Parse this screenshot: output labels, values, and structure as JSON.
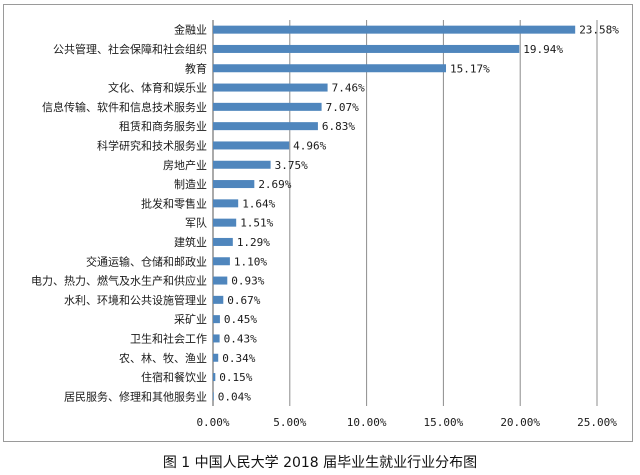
{
  "caption": "图 1 中国人民大学 2018 届毕业生就业行业分布图",
  "chart_data": {
    "type": "bar",
    "orientation": "horizontal",
    "bar_color": "#4f86bd",
    "grid": "vertical",
    "xlim": [
      0,
      0.25
    ],
    "x_ticks": [
      "0.00%",
      "5.00%",
      "10.00%",
      "15.00%",
      "20.00%",
      "25.00%"
    ],
    "x_tick_values": [
      0,
      0.05,
      0.1,
      0.15,
      0.2,
      0.25
    ],
    "categories": [
      "金融业",
      "公共管理、社会保障和社会组织",
      "教育",
      "文化、体育和娱乐业",
      "信息传输、软件和信息技术服务业",
      "租赁和商务服务业",
      "科学研究和技术服务业",
      "房地产业",
      "制造业",
      "批发和零售业",
      "军队",
      "建筑业",
      "交通运输、仓储和邮政业",
      "电力、热力、燃气及水生产和供应业",
      "水利、环境和公共设施管理业",
      "采矿业",
      "卫生和社会工作",
      "农、林、牧、渔业",
      "住宿和餐饮业",
      "居民服务、修理和其他服务业"
    ],
    "values": [
      0.2358,
      0.1994,
      0.1517,
      0.0746,
      0.0707,
      0.0683,
      0.0496,
      0.0375,
      0.0269,
      0.0164,
      0.0151,
      0.0129,
      0.011,
      0.0093,
      0.0067,
      0.0045,
      0.0043,
      0.0034,
      0.0015,
      0.0004
    ],
    "value_labels": [
      "23.58%",
      "19.94%",
      "15.17%",
      "7.46%",
      "7.07%",
      "6.83%",
      "4.96%",
      "3.75%",
      "2.69%",
      "1.64%",
      "1.51%",
      "1.29%",
      "1.10%",
      "0.93%",
      "0.67%",
      "0.45%",
      "0.43%",
      "0.34%",
      "0.15%",
      "0.04%"
    ]
  }
}
